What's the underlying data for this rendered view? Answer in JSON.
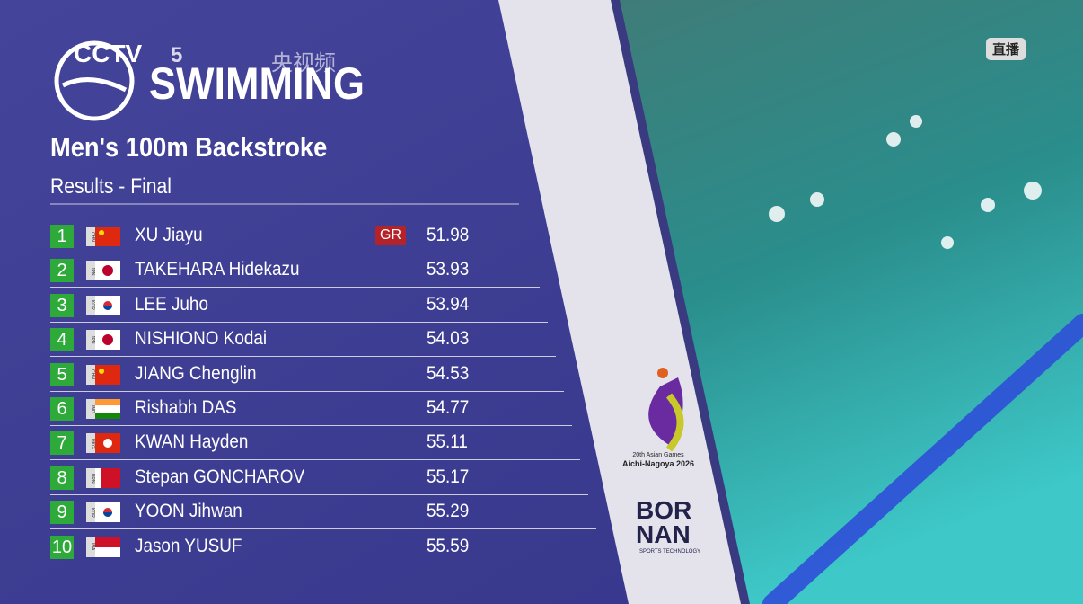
{
  "header": {
    "channel": "CCTV",
    "channel_number": "5",
    "platform": "央视频",
    "sport": "SWIMMING",
    "event": "Men's 100m Backstroke",
    "subtitle": "Results - Final",
    "live": "直播"
  },
  "table": {
    "rows": [
      {
        "rank": "1",
        "country": "CHN",
        "name": "XU Jiayu",
        "record": "GR",
        "time": "51.98"
      },
      {
        "rank": "2",
        "country": "JPN",
        "name": "TAKEHARA Hidekazu",
        "time": "53.93"
      },
      {
        "rank": "3",
        "country": "KOR",
        "name": "LEE Juho",
        "time": "53.94"
      },
      {
        "rank": "4",
        "country": "JPN",
        "name": "NISHIONO Kodai",
        "time": "54.03"
      },
      {
        "rank": "5",
        "country": "CHN",
        "name": "JIANG Chenglin",
        "time": "54.53"
      },
      {
        "rank": "6",
        "country": "IND",
        "name": "Rishabh DAS",
        "time": "54.77"
      },
      {
        "rank": "7",
        "country": "HKG",
        "name": "KWAN Hayden",
        "time": "55.11"
      },
      {
        "rank": "8",
        "country": "BRN",
        "name": "Stepan GONCHAROV",
        "time": "55.17"
      },
      {
        "rank": "9",
        "country": "KOR",
        "name": "YOON Jihwan",
        "time": "55.29"
      },
      {
        "rank": "10",
        "country": "INA",
        "name": "Jason YUSUF",
        "time": "55.59"
      }
    ]
  },
  "logos": {
    "games_line1": "20th Asian Games",
    "games_line2": "Aichi-Nagoya 2026",
    "sponsor_line1": "BOR",
    "sponsor_line2": "NAN",
    "sponsor_tagline": "SPORTS TECHNOLOGY"
  }
}
